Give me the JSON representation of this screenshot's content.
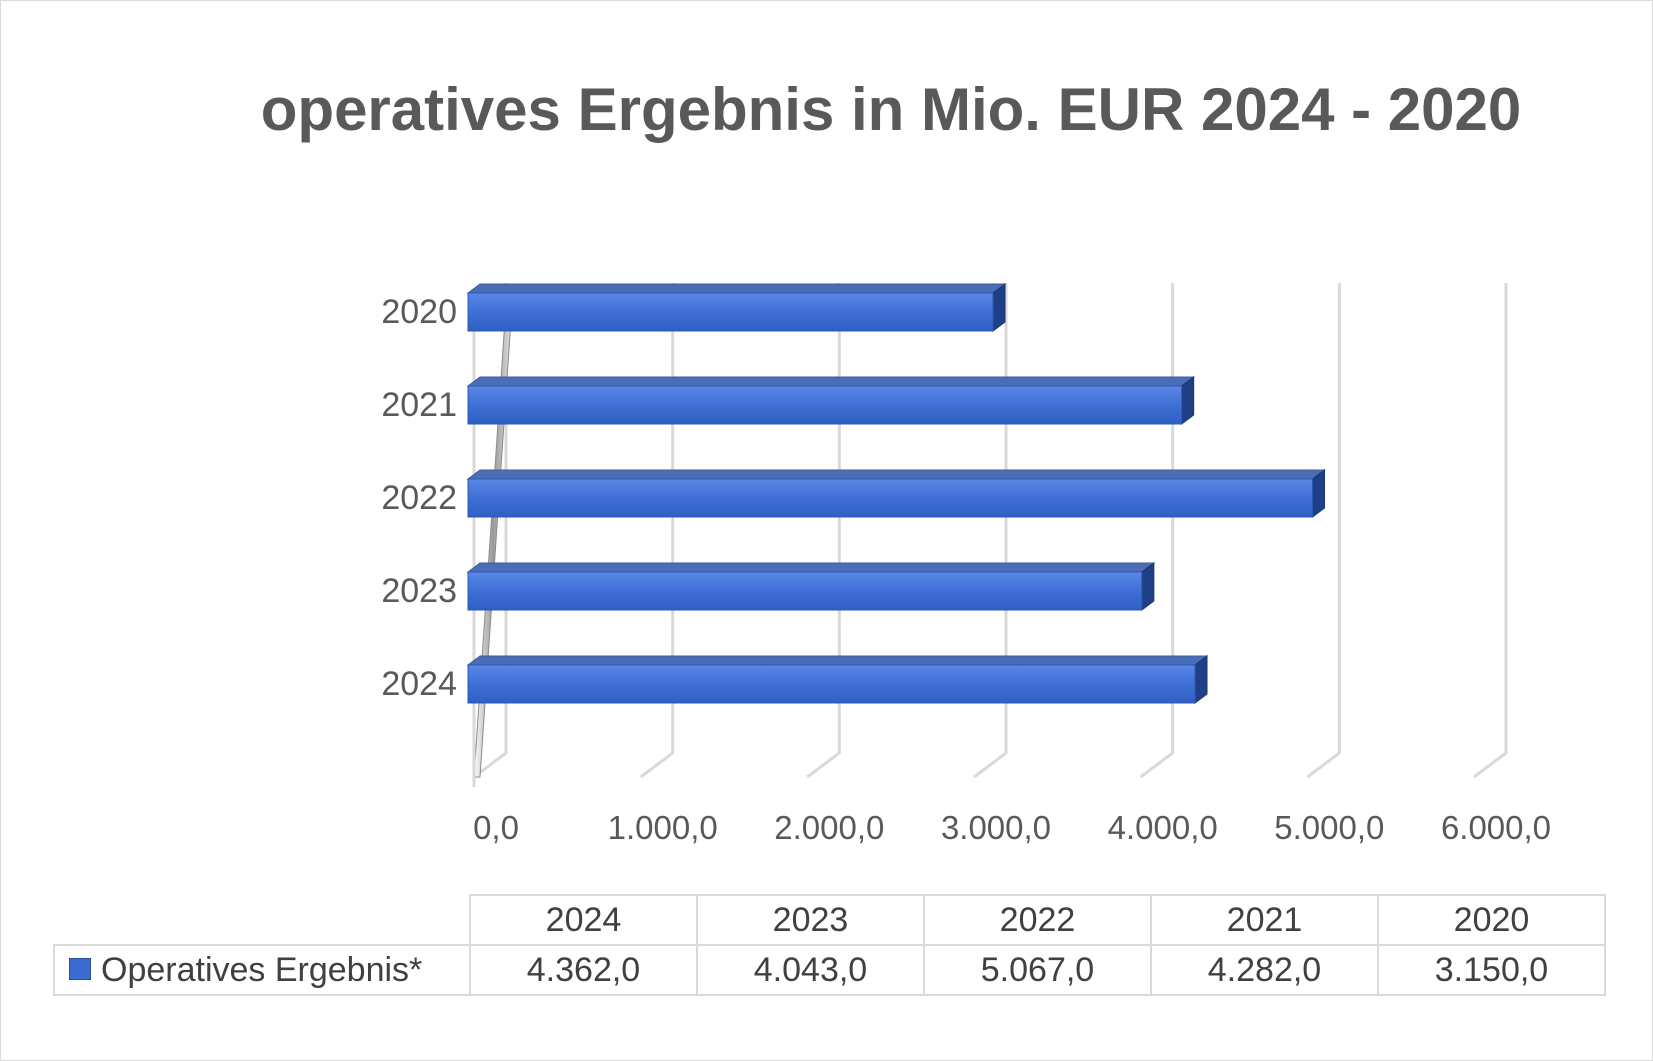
{
  "chart_data": {
    "type": "bar",
    "orientation": "horizontal",
    "title": "operatives Ergebnis in Mio. EUR 2024 - 2020",
    "categories": [
      "2024",
      "2023",
      "2022",
      "2021",
      "2020"
    ],
    "series": [
      {
        "name": "Operatives Ergebnis*",
        "values": [
          4362.0,
          4043.0,
          5067.0,
          4282.0,
          3150.0
        ]
      }
    ],
    "value_labels": [
      "4.362,0",
      "4.043,0",
      "5.067,0",
      "4.282,0",
      "3.150,0"
    ],
    "xlim": [
      0,
      6000
    ],
    "x_ticks": [
      0,
      1000,
      2000,
      3000,
      4000,
      5000,
      6000
    ],
    "x_tick_labels": [
      "0,0",
      "1.000,0",
      "2.000,0",
      "3.000,0",
      "4.000,0",
      "5.000,0",
      "6.000,0"
    ],
    "grid": true,
    "legend": "data-table",
    "bar_color": "#3a6bd1"
  }
}
